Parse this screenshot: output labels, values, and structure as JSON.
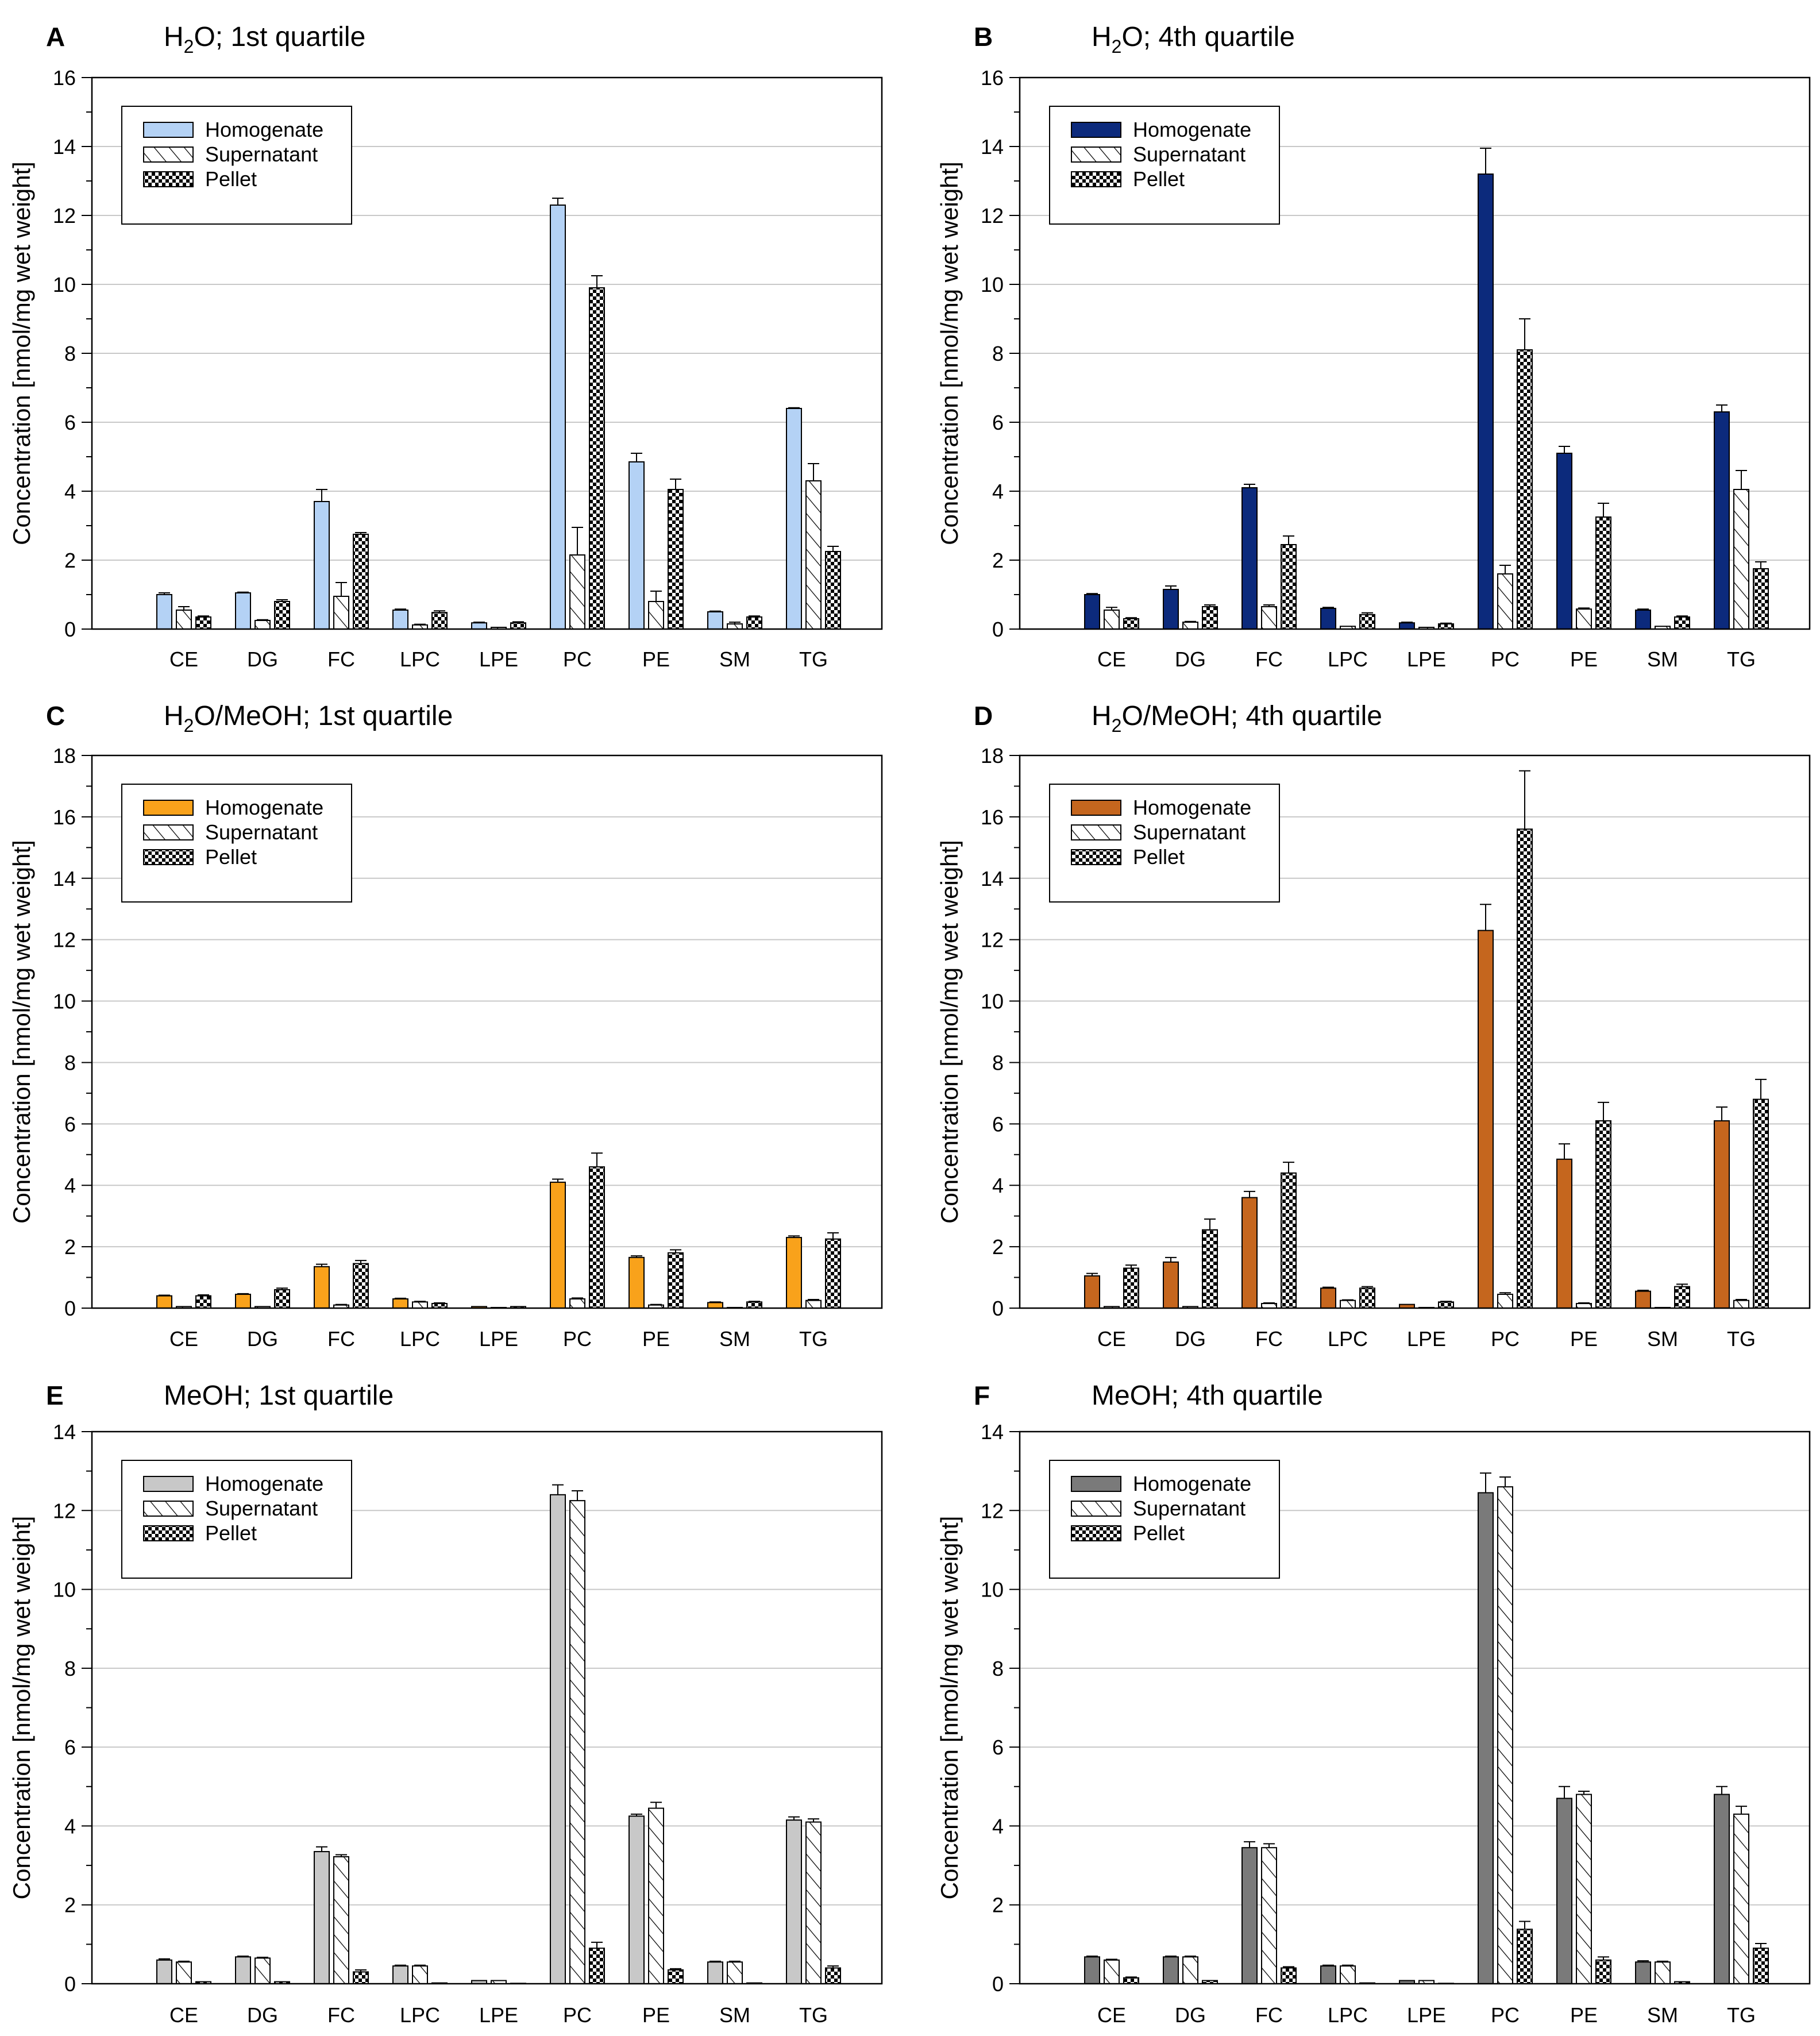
{
  "series_names": [
    "Homogenate",
    "Supernatant",
    "Pellet"
  ],
  "charts": [
    {
      "letter": "A",
      "title": "H2O; 1st quartile",
      "title_parts": [
        "H",
        "2",
        "O; 1st quartile"
      ],
      "type": "bar",
      "ylabel": "Concentration [nmol/mg wet weight]",
      "ylim": [
        0,
        16
      ],
      "yticks": [
        0,
        2,
        4,
        6,
        8,
        10,
        12,
        14,
        16
      ],
      "homogenate_color": "#b4d2f5",
      "categories": [
        "CE",
        "DG",
        "FC",
        "LPC",
        "LPE",
        "PC",
        "PE",
        "SM",
        "TG"
      ],
      "series": [
        {
          "name": "Homogenate",
          "values": [
            1.0,
            1.05,
            3.7,
            0.55,
            0.18,
            12.3,
            4.85,
            0.5,
            6.4
          ],
          "errors": [
            0.05,
            0.02,
            0.35,
            0.03,
            0.02,
            0.2,
            0.25,
            0.02,
            0.02
          ]
        },
        {
          "name": "Supernatant",
          "values": [
            0.55,
            0.25,
            0.95,
            0.12,
            0.05,
            2.15,
            0.8,
            0.15,
            4.3
          ],
          "errors": [
            0.1,
            0.02,
            0.4,
            0.02,
            0.01,
            0.8,
            0.3,
            0.05,
            0.5
          ]
        },
        {
          "name": "Pellet",
          "values": [
            0.35,
            0.8,
            2.75,
            0.48,
            0.18,
            9.9,
            4.05,
            0.35,
            2.25
          ],
          "errors": [
            0.03,
            0.05,
            0.05,
            0.05,
            0.03,
            0.35,
            0.3,
            0.03,
            0.15
          ]
        }
      ]
    },
    {
      "letter": "B",
      "title": "H2O; 4th quartile",
      "title_parts": [
        "H",
        "2",
        "O; 4th quartile"
      ],
      "type": "bar",
      "ylabel": "Concentration [nmol/mg wet weight]",
      "ylim": [
        0,
        16
      ],
      "yticks": [
        0,
        2,
        4,
        6,
        8,
        10,
        12,
        14,
        16
      ],
      "homogenate_color": "#0c2a7c",
      "categories": [
        "CE",
        "DG",
        "FC",
        "LPC",
        "LPE",
        "PC",
        "PE",
        "SM",
        "TG"
      ],
      "series": [
        {
          "name": "Homogenate",
          "values": [
            1.0,
            1.15,
            4.1,
            0.6,
            0.18,
            13.2,
            5.1,
            0.55,
            6.3
          ],
          "errors": [
            0.03,
            0.1,
            0.1,
            0.03,
            0.02,
            0.75,
            0.2,
            0.03,
            0.2
          ]
        },
        {
          "name": "Supernatant",
          "values": [
            0.55,
            0.2,
            0.65,
            0.08,
            0.05,
            1.6,
            0.58,
            0.08,
            4.05
          ],
          "errors": [
            0.08,
            0.02,
            0.05,
            0.01,
            0.01,
            0.25,
            0.03,
            0.01,
            0.55
          ]
        },
        {
          "name": "Pellet",
          "values": [
            0.3,
            0.65,
            2.45,
            0.42,
            0.15,
            8.1,
            3.25,
            0.35,
            1.75
          ],
          "errors": [
            0.03,
            0.05,
            0.25,
            0.05,
            0.02,
            0.9,
            0.4,
            0.03,
            0.2
          ]
        }
      ]
    },
    {
      "letter": "C",
      "title": "H2O/MeOH; 1st quartile",
      "title_parts": [
        "H",
        "2",
        "O/MeOH; 1st quartile"
      ],
      "type": "bar",
      "ylabel": "Concentration [nmol/mg wet weight]",
      "ylim": [
        0,
        18
      ],
      "yticks": [
        0,
        2,
        4,
        6,
        8,
        10,
        12,
        14,
        16,
        18
      ],
      "homogenate_color": "#f9a21b",
      "categories": [
        "CE",
        "DG",
        "FC",
        "LPC",
        "LPE",
        "PC",
        "PE",
        "SM",
        "TG"
      ],
      "series": [
        {
          "name": "Homogenate",
          "values": [
            0.4,
            0.45,
            1.35,
            0.3,
            0.05,
            4.1,
            1.65,
            0.18,
            2.3
          ],
          "errors": [
            0.02,
            0.02,
            0.08,
            0.02,
            0.01,
            0.1,
            0.05,
            0.02,
            0.05
          ]
        },
        {
          "name": "Supernatant",
          "values": [
            0.05,
            0.05,
            0.1,
            0.2,
            0.02,
            0.3,
            0.1,
            0.02,
            0.25
          ],
          "errors": [
            0.01,
            0.01,
            0.02,
            0.02,
            0.01,
            0.03,
            0.02,
            0.01,
            0.03
          ]
        },
        {
          "name": "Pellet",
          "values": [
            0.4,
            0.6,
            1.45,
            0.15,
            0.05,
            4.6,
            1.8,
            0.2,
            2.25
          ],
          "errors": [
            0.03,
            0.05,
            0.1,
            0.02,
            0.01,
            0.45,
            0.1,
            0.02,
            0.2
          ]
        }
      ]
    },
    {
      "letter": "D",
      "title": "H2O/MeOH; 4th quartile",
      "title_parts": [
        "H",
        "2",
        "O/MeOH; 4th quartile"
      ],
      "type": "bar",
      "ylabel": "Concentration [nmol/mg wet weight]",
      "ylim": [
        0,
        18
      ],
      "yticks": [
        0,
        2,
        4,
        6,
        8,
        10,
        12,
        14,
        16,
        18
      ],
      "homogenate_color": "#c5661e",
      "categories": [
        "CE",
        "DG",
        "FC",
        "LPC",
        "LPE",
        "PC",
        "PE",
        "SM",
        "TG"
      ],
      "series": [
        {
          "name": "Homogenate",
          "values": [
            1.05,
            1.5,
            3.6,
            0.65,
            0.12,
            12.3,
            4.85,
            0.55,
            6.1
          ],
          "errors": [
            0.08,
            0.15,
            0.2,
            0.03,
            0.01,
            0.85,
            0.5,
            0.03,
            0.45
          ]
        },
        {
          "name": "Supernatant",
          "values": [
            0.05,
            0.05,
            0.15,
            0.25,
            0.02,
            0.45,
            0.15,
            0.02,
            0.25
          ],
          "errors": [
            0.01,
            0.01,
            0.02,
            0.02,
            0.01,
            0.05,
            0.02,
            0.01,
            0.03
          ]
        },
        {
          "name": "Pellet",
          "values": [
            1.3,
            2.55,
            4.4,
            0.65,
            0.2,
            15.6,
            6.1,
            0.7,
            6.8
          ],
          "errors": [
            0.1,
            0.35,
            0.35,
            0.05,
            0.02,
            1.9,
            0.6,
            0.08,
            0.65
          ]
        }
      ]
    },
    {
      "letter": "E",
      "title": "MeOH; 1st quartile",
      "title_parts": [
        "MeOH; 1st quartile",
        "",
        ""
      ],
      "type": "bar",
      "ylabel": "Concentration [nmol/mg wet weight]",
      "ylim": [
        0,
        14
      ],
      "yticks": [
        0,
        2,
        4,
        6,
        8,
        10,
        12,
        14
      ],
      "homogenate_color": "#c8c8c8",
      "categories": [
        "CE",
        "DG",
        "FC",
        "LPC",
        "LPE",
        "PC",
        "PE",
        "SM",
        "TG"
      ],
      "series": [
        {
          "name": "Homogenate",
          "values": [
            0.6,
            0.68,
            3.35,
            0.45,
            0.08,
            12.4,
            4.25,
            0.55,
            4.15
          ],
          "errors": [
            0.03,
            0.02,
            0.12,
            0.02,
            0.01,
            0.25,
            0.05,
            0.02,
            0.08
          ]
        },
        {
          "name": "Supernatant",
          "values": [
            0.55,
            0.65,
            3.22,
            0.45,
            0.08,
            12.25,
            4.45,
            0.55,
            4.1
          ],
          "errors": [
            0.02,
            0.02,
            0.05,
            0.02,
            0.01,
            0.25,
            0.15,
            0.02,
            0.08
          ]
        },
        {
          "name": "Pellet",
          "values": [
            0.05,
            0.05,
            0.3,
            0.02,
            0.01,
            0.9,
            0.35,
            0.02,
            0.4
          ],
          "errors": [
            0.01,
            0.01,
            0.05,
            0.01,
            0.01,
            0.15,
            0.03,
            0.01,
            0.05
          ]
        }
      ]
    },
    {
      "letter": "F",
      "title": "MeOH; 4th quartile",
      "title_parts": [
        "MeOH; 4th quartile",
        "",
        ""
      ],
      "type": "bar",
      "ylabel": "Concentration [nmol/mg wet weight]",
      "ylim": [
        0,
        14
      ],
      "yticks": [
        0,
        2,
        4,
        6,
        8,
        10,
        12,
        14
      ],
      "homogenate_color": "#7a7a7a",
      "categories": [
        "CE",
        "DG",
        "FC",
        "LPC",
        "LPE",
        "PC",
        "PE",
        "SM",
        "TG"
      ],
      "series": [
        {
          "name": "Homogenate",
          "values": [
            0.68,
            0.68,
            3.45,
            0.45,
            0.08,
            12.45,
            4.7,
            0.55,
            4.8
          ],
          "errors": [
            0.02,
            0.02,
            0.15,
            0.02,
            0.01,
            0.5,
            0.3,
            0.03,
            0.2
          ]
        },
        {
          "name": "Supernatant",
          "values": [
            0.6,
            0.68,
            3.45,
            0.45,
            0.08,
            12.6,
            4.8,
            0.55,
            4.3
          ],
          "errors": [
            0.02,
            0.02,
            0.1,
            0.02,
            0.01,
            0.25,
            0.08,
            0.02,
            0.2
          ]
        },
        {
          "name": "Pellet",
          "values": [
            0.15,
            0.08,
            0.4,
            0.02,
            0.01,
            1.38,
            0.6,
            0.05,
            0.9
          ],
          "errors": [
            0.02,
            0.01,
            0.03,
            0.01,
            0.01,
            0.2,
            0.08,
            0.01,
            0.12
          ]
        }
      ]
    }
  ]
}
